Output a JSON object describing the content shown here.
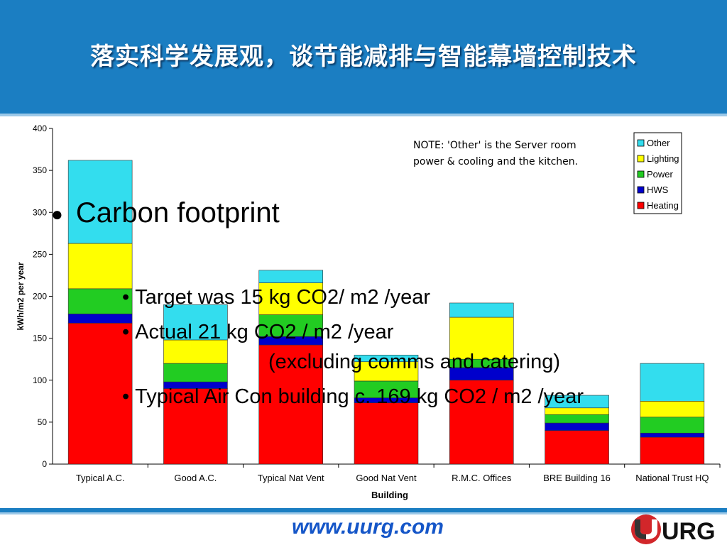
{
  "header": {
    "title": "落实科学发展观，谈节能减排与智能幕墙控制技术"
  },
  "slide": {
    "bullet_main": "Carbon footprint",
    "bullets": [
      "Target was 15 kg CO2/ m2 /year",
      "Actual 21 kg CO2 / m2 /year",
      "(excluding comms and catering)",
      "Typical Air Con building c. 169 kg CO2 / m2 /year"
    ]
  },
  "footer": {
    "url": "www.uurg.com",
    "logo_text": "UURG"
  },
  "colors": {
    "header": "#1b7ec2",
    "url": "#1556c8",
    "logo_red": "#d2262a"
  },
  "chart_data": {
    "type": "bar",
    "stacked": true,
    "categories": [
      "Typical A.C.",
      "Good A.C.",
      "Typical Nat Vent",
      "Good Nat Vent",
      "R.M.C. Offices",
      "BRE Building 16",
      "National Trust HQ"
    ],
    "series": [
      {
        "name": "Heating",
        "color": "#ff0000",
        "values": [
          168,
          90,
          142,
          73,
          100,
          40,
          32
        ]
      },
      {
        "name": "HWS",
        "color": "#0000cc",
        "values": [
          11,
          8,
          10,
          6,
          15,
          9,
          5
        ]
      },
      {
        "name": "Power",
        "color": "#22cc22",
        "values": [
          30,
          22,
          26,
          20,
          10,
          10,
          19
        ]
      },
      {
        "name": "Lighting",
        "color": "#ffff00",
        "values": [
          54,
          28,
          38,
          23,
          50,
          8,
          19
        ]
      },
      {
        "name": "Other",
        "color": "#33ddee",
        "values": [
          99,
          42,
          15,
          8,
          17,
          15,
          45
        ]
      }
    ],
    "legend_order": [
      "Other",
      "Lighting",
      "Power",
      "HWS",
      "Heating"
    ],
    "legend_position": "top-right",
    "xlabel": "Building",
    "ylabel": "kWh/m2 per year",
    "ylim": [
      0,
      400
    ],
    "yticks": [
      0,
      50,
      100,
      150,
      200,
      250,
      300,
      350,
      400
    ],
    "grid": false,
    "note": [
      "NOTE: 'Other' is the Server room",
      "power & cooling and the kitchen."
    ]
  }
}
